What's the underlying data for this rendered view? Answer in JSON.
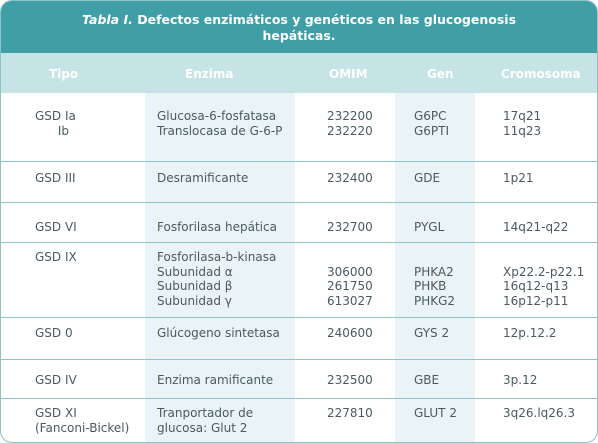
{
  "table": {
    "caption_lead": "Tabla I.",
    "caption_text": " Defectos enzimáticos y genéticos en las glucogenosis hepáticas.",
    "headers": [
      "Tipo",
      "Enzima",
      "OMIM",
      "Gen",
      "Cromosoma"
    ],
    "rows": [
      {
        "tipo": [
          "GSD Ia",
          "      Ib"
        ],
        "enzima": [
          "Glucosa-6-fosfatasa",
          "Translocasa de G-6-P"
        ],
        "omim": [
          "232200",
          "232220"
        ],
        "gen": [
          "G6PC",
          "G6PTI"
        ],
        "cromosoma": [
          "17q21",
          "11q23"
        ]
      },
      {
        "tipo": [
          "GSD III"
        ],
        "enzima": [
          "Desramificante"
        ],
        "omim": [
          "232400"
        ],
        "gen": [
          "GDE"
        ],
        "cromosoma": [
          "1p21"
        ]
      },
      {
        "tipo": [
          "GSD VI"
        ],
        "enzima": [
          "Fosforilasa hepática"
        ],
        "omim": [
          "232700"
        ],
        "gen": [
          "PYGL"
        ],
        "cromosoma": [
          "14q21-q22"
        ]
      },
      {
        "tipo": [
          "GSD IX"
        ],
        "enzima": [
          "Fosforilasa-b-kinasa",
          "Subunidad α",
          "Subunidad β",
          "Subunidad γ"
        ],
        "omim": [
          "",
          "306000",
          "261750",
          "613027"
        ],
        "gen": [
          "",
          "PHKA2",
          "PHKB",
          "PHKG2"
        ],
        "cromosoma": [
          "",
          "Xp22.2-p22.1",
          "16q12-q13",
          "16p12-p11"
        ]
      },
      {
        "tipo": [
          "GSD 0"
        ],
        "enzima": [
          "Glúcogeno sintetasa"
        ],
        "omim": [
          "240600"
        ],
        "gen": [
          "GYS 2"
        ],
        "cromosoma": [
          "12p.12.2"
        ]
      },
      {
        "tipo": [
          "GSD IV"
        ],
        "enzima": [
          "Enzima ramificante"
        ],
        "omim": [
          "232500"
        ],
        "gen": [
          "GBE"
        ],
        "cromosoma": [
          "3p.12"
        ]
      },
      {
        "tipo": [
          "GSD XI",
          "(Fanconi-Bickel)"
        ],
        "enzima": [
          "Tranportador de",
          "glucosa: Glut 2"
        ],
        "omim": [
          "227810"
        ],
        "gen": [
          "GLUT 2"
        ],
        "cromosoma": [
          "3q26.lq26.3"
        ]
      }
    ]
  },
  "colors": {
    "title_bg": "#3f9ea6",
    "header_bg": "#c6e3e5",
    "shaded_col": "#eaf4f6",
    "rule": "#8fc3c6",
    "text": "#4a5a60"
  }
}
